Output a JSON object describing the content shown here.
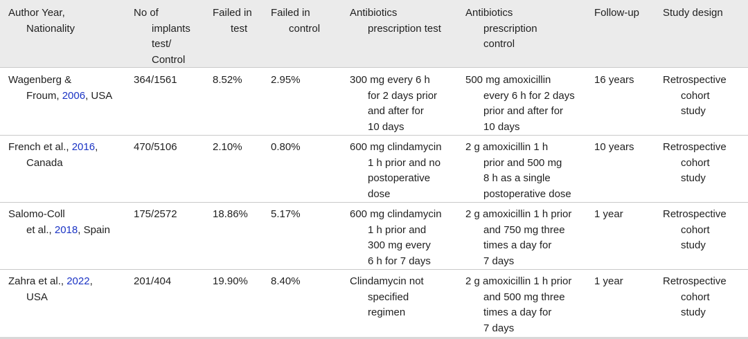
{
  "header": {
    "author_year_nationality": [
      "Author Year,",
      "Nationality"
    ],
    "implants": [
      "No of",
      "implants",
      "test/",
      "Control"
    ],
    "failed_test": [
      "Failed in",
      "test"
    ],
    "failed_control": [
      "Failed in",
      "control"
    ],
    "abx_test": [
      "Antibiotics",
      "prescription test"
    ],
    "abx_control": [
      "Antibiotics",
      "prescription",
      "control"
    ],
    "follow_up": "Follow-up",
    "study_design": "Study design"
  },
  "rows": [
    {
      "author": {
        "l1": "Wagenberg &",
        "l2a": "Froum, ",
        "year": "2006",
        "l2b": ", USA"
      },
      "implants": "364/1561",
      "failed_test": "8.52%",
      "failed_control": "2.95%",
      "abx_test": [
        "300 mg every 6 h",
        "for 2 days prior",
        "and after for",
        "10 days"
      ],
      "abx_control": [
        "500 mg amoxicillin",
        "every 6 h for 2 days",
        "prior and after for",
        "10 days"
      ],
      "follow_up": "16 years",
      "design": [
        "Retrospective",
        "cohort",
        "study"
      ]
    },
    {
      "author": {
        "l1a": "French et al., ",
        "year": "2016",
        "l1b": ",",
        "l2": "Canada"
      },
      "implants": "470/5106",
      "failed_test": "2.10%",
      "failed_control": "0.80%",
      "abx_test": [
        "600 mg clindamycin",
        "1 h prior and no",
        "postoperative",
        "dose"
      ],
      "abx_control": [
        "2 g amoxicillin 1 h",
        "prior and 500 mg",
        "8 h as a single",
        "postoperative dose"
      ],
      "follow_up": "10 years",
      "design": [
        "Retrospective",
        "cohort",
        "study"
      ]
    },
    {
      "author": {
        "l1": "Salomo-Coll",
        "l2a": "et al., ",
        "year": "2018",
        "l2b": ", Spain"
      },
      "implants": "175/2572",
      "failed_test": "18.86%",
      "failed_control": "5.17%",
      "abx_test": [
        "600 mg clindamycin",
        "1 h prior and",
        "300 mg every",
        "6 h for 7 days"
      ],
      "abx_control": [
        "2 g amoxicillin 1 h prior",
        "and 750 mg three",
        "times a day for",
        "7 days"
      ],
      "follow_up": "1 year",
      "design": [
        "Retrospective",
        "cohort",
        "study"
      ]
    },
    {
      "author": {
        "l1a": "Zahra et al., ",
        "year": "2022",
        "l1b": ",",
        "l2": "USA"
      },
      "implants": "201/404",
      "failed_test": "19.90%",
      "failed_control": "8.40%",
      "abx_test": [
        "Clindamycin not",
        "specified",
        "regimen"
      ],
      "abx_control": [
        "2 g amoxicillin 1 h prior",
        "and 500 mg three",
        "times a day for",
        "7 days"
      ],
      "follow_up": "1 year",
      "design": [
        "Retrospective",
        "cohort",
        "study"
      ]
    }
  ],
  "colors": {
    "header_bg": "#ebebeb",
    "citation_link": "#1a33c4",
    "rule": "#c9c9c9"
  }
}
